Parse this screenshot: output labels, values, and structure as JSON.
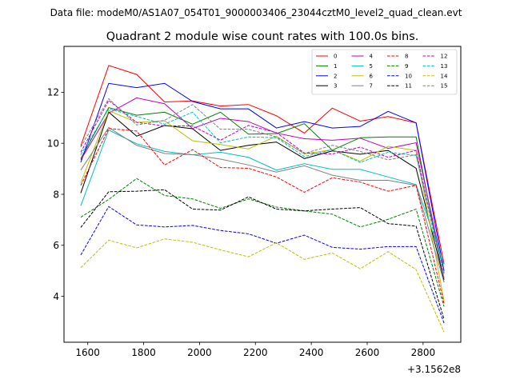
{
  "suptitle": "Data file: modeM0/AS1A07_054T01_9000003406_23044cztM0_level2_quad_clean.evt",
  "chart_data": {
    "type": "line",
    "title": "Quadrant 2 module wise count rates with 100.0s bins.",
    "xlabel": "",
    "ylabel": "",
    "x_offset_label": "+3.1562e8",
    "x": [
      1575,
      1675,
      1775,
      1875,
      1975,
      2075,
      2175,
      2275,
      2375,
      2475,
      2575,
      2675,
      2775,
      2875
    ],
    "xlim": [
      1515,
      2935
    ],
    "ylim": [
      2.2,
      13.8
    ],
    "xticks": [
      1600,
      1800,
      2000,
      2200,
      2400,
      2600,
      2800
    ],
    "yticks": [
      4,
      6,
      8,
      10,
      12
    ],
    "grid": false,
    "legend_position": "top-right",
    "legend_columns": 4,
    "series": [
      {
        "name": "0",
        "color": "#ff0000",
        "dash": "solid",
        "values": [
          9.9,
          13.05,
          12.7,
          11.62,
          11.66,
          11.46,
          11.52,
          11.08,
          10.4,
          11.38,
          10.87,
          11.05,
          10.8,
          5.28
        ]
      },
      {
        "name": "1",
        "color": "#008000",
        "dash": "solid",
        "values": [
          9.4,
          11.4,
          11.1,
          11.22,
          10.75,
          11.22,
          10.36,
          10.38,
          10.77,
          9.73,
          10.22,
          10.25,
          10.25,
          4.55
        ]
      },
      {
        "name": "2",
        "color": "#0000ff",
        "dash": "solid",
        "values": [
          9.25,
          12.35,
          12.18,
          12.35,
          11.64,
          11.35,
          11.35,
          10.6,
          10.85,
          10.6,
          10.66,
          11.25,
          10.8,
          5.0
        ]
      },
      {
        "name": "3",
        "color": "#000000",
        "dash": "solid",
        "values": [
          8.05,
          11.22,
          10.28,
          10.7,
          10.57,
          9.72,
          9.92,
          10.05,
          9.4,
          9.7,
          9.57,
          9.72,
          9.02,
          4.65
        ]
      },
      {
        "name": "4",
        "color": "#bf00bf",
        "dash": "solid",
        "values": [
          9.35,
          11.18,
          11.78,
          11.55,
          10.58,
          10.98,
          10.85,
          10.4,
          10.18,
          10.12,
          10.2,
          9.8,
          10.02,
          4.9
        ]
      },
      {
        "name": "5",
        "color": "#00bfbf",
        "dash": "solid",
        "values": [
          7.55,
          10.52,
          9.98,
          9.68,
          9.55,
          9.65,
          9.45,
          8.95,
          9.2,
          8.98,
          8.98,
          8.68,
          8.38,
          5.25
        ]
      },
      {
        "name": "6",
        "color": "#bfbf00",
        "dash": "solid",
        "values": [
          8.45,
          11.28,
          10.82,
          10.88,
          10.1,
          9.95,
          9.78,
          10.28,
          9.58,
          9.75,
          9.3,
          9.88,
          9.72,
          3.82
        ]
      },
      {
        "name": "7",
        "color": "#808080",
        "dash": "solid",
        "values": [
          8.95,
          10.62,
          9.92,
          9.6,
          9.55,
          9.38,
          9.15,
          8.87,
          9.12,
          8.75,
          8.55,
          8.55,
          8.35,
          4.55
        ]
      },
      {
        "name": "8",
        "color": "#ff0000",
        "dash": "dashed",
        "values": [
          8.35,
          10.58,
          10.48,
          9.15,
          9.75,
          9.05,
          9.02,
          8.68,
          8.08,
          8.65,
          8.48,
          8.12,
          8.35,
          3.72
        ]
      },
      {
        "name": "9",
        "color": "#008000",
        "dash": "dashed",
        "values": [
          7.1,
          7.8,
          8.62,
          7.95,
          7.82,
          7.45,
          7.82,
          7.5,
          7.35,
          7.22,
          6.72,
          7.02,
          7.42,
          3.6
        ]
      },
      {
        "name": "10",
        "color": "#0000ff",
        "dash": "dashed",
        "values": [
          5.62,
          7.52,
          6.8,
          6.72,
          6.78,
          6.58,
          6.45,
          6.08,
          6.4,
          5.92,
          5.85,
          5.95,
          5.95,
          2.95
        ]
      },
      {
        "name": "11",
        "color": "#000000",
        "dash": "dashed",
        "values": [
          6.7,
          8.1,
          8.12,
          8.18,
          7.42,
          7.38,
          7.9,
          7.42,
          7.35,
          7.42,
          7.48,
          6.85,
          6.75,
          3.1
        ]
      },
      {
        "name": "12",
        "color": "#bf00bf",
        "dash": "dashed",
        "values": [
          9.65,
          11.68,
          10.82,
          10.68,
          10.68,
          10.12,
          10.7,
          10.42,
          9.62,
          9.58,
          9.85,
          9.45,
          9.72,
          4.72
        ]
      },
      {
        "name": "13",
        "color": "#00bfbf",
        "dash": "dashed",
        "values": [
          9.55,
          11.35,
          11.05,
          10.75,
          11.22,
          10.02,
          10.25,
          10.22,
          9.48,
          9.75,
          9.25,
          9.65,
          9.52,
          4.95
        ]
      },
      {
        "name": "14",
        "color": "#bfbf00",
        "dash": "dashed",
        "values": [
          5.12,
          6.2,
          5.9,
          6.25,
          6.12,
          5.82,
          5.55,
          6.1,
          5.45,
          5.7,
          5.08,
          5.75,
          5.05,
          2.6
        ]
      },
      {
        "name": "15",
        "color": "#808080",
        "dash": "dashed",
        "values": [
          9.85,
          11.75,
          10.72,
          10.9,
          11.52,
          10.55,
          10.55,
          10.25,
          9.6,
          9.92,
          9.68,
          9.35,
          9.55,
          4.72
        ]
      }
    ]
  }
}
